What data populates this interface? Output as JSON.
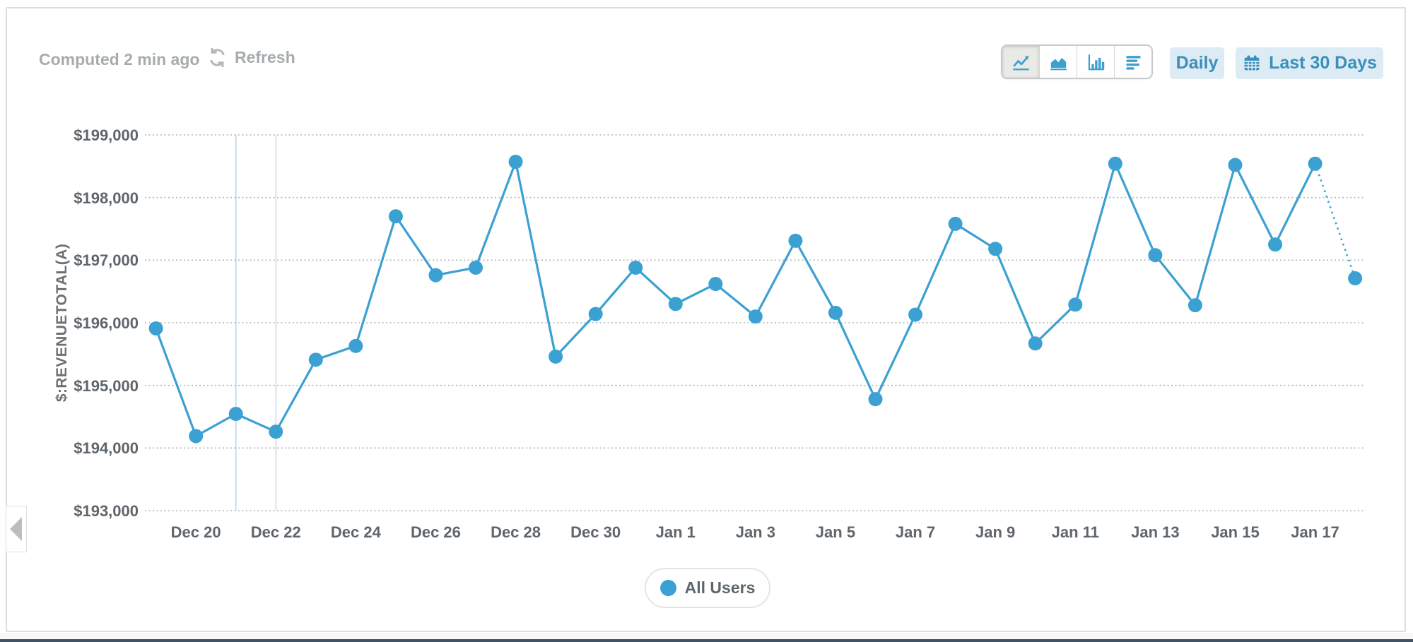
{
  "header": {
    "computed_label": "Computed 2 min ago",
    "refresh_label": "Refresh"
  },
  "toolbar": {
    "granularity_label": "Daily",
    "range_label": "Last 30 Days",
    "chart_type_buttons": [
      {
        "name": "line-chart",
        "selected": true
      },
      {
        "name": "area-chart",
        "selected": false
      },
      {
        "name": "column-chart",
        "selected": false
      },
      {
        "name": "horizontal-bars",
        "selected": false
      }
    ]
  },
  "legend": {
    "label": "All Users"
  },
  "icons": {
    "refresh": "refresh-icon",
    "calendar": "calendar-icon",
    "line_chart": "line-chart-icon",
    "area_chart": "area-chart-icon",
    "column_chart": "column-chart-icon",
    "horizontal_bars": "horizontal-bars-icon",
    "collapse": "collapse-left-arrow-icon",
    "legend_dot": "legend-dot"
  },
  "colors": {
    "accent": "#3BA0D2",
    "button_bg": "#DCEBF4",
    "button_text": "#3A8FBB",
    "grid": "#B0B3B5",
    "axis_text": "#5E656B",
    "muted_text": "#A6ABAE",
    "highlight_line": "#C7DCF0",
    "card_border": "#DCDDDD",
    "bottom_bar": "#3E5263",
    "footer_strip": "#F6F8F9"
  },
  "chart_data": {
    "type": "line",
    "title": "",
    "xlabel": "",
    "ylabel": "$:REVENUETOTAL(A)",
    "ylim": [
      193000,
      199000
    ],
    "y_tick_step": 1000,
    "y_ticks": [
      "$199,000",
      "$198,000",
      "$197,000",
      "$196,000",
      "$195,000",
      "$194,000",
      "$193,000"
    ],
    "grid": "horizontal-dotted",
    "legend_position": "bottom",
    "line_color": "#3BA0D2",
    "x": [
      "Dec 19",
      "Dec 20",
      "Dec 21",
      "Dec 22",
      "Dec 23",
      "Dec 24",
      "Dec 25",
      "Dec 26",
      "Dec 27",
      "Dec 28",
      "Dec 29",
      "Dec 30",
      "Dec 31",
      "Jan 1",
      "Jan 2",
      "Jan 3",
      "Jan 4",
      "Jan 5",
      "Jan 6",
      "Jan 7",
      "Jan 8",
      "Jan 9",
      "Jan 10",
      "Jan 11",
      "Jan 12",
      "Jan 13",
      "Jan 14",
      "Jan 15",
      "Jan 16",
      "Jan 17",
      "Jan 18"
    ],
    "x_tick_labels": [
      "Dec 20",
      "Dec 22",
      "Dec 24",
      "Dec 26",
      "Dec 28",
      "Dec 30",
      "Jan 1",
      "Jan 3",
      "Jan 5",
      "Jan 7",
      "Jan 9",
      "Jan 11",
      "Jan 13",
      "Jan 15",
      "Jan 17"
    ],
    "series": [
      {
        "name": "All Users",
        "values": [
          195910,
          194190,
          194545,
          194260,
          195410,
          195630,
          197700,
          196760,
          196880,
          198570,
          195460,
          196140,
          196880,
          196300,
          196620,
          196100,
          197310,
          196160,
          194780,
          196130,
          197580,
          197180,
          195670,
          196290,
          198540,
          197080,
          196280,
          198520,
          197250,
          198540,
          196710
        ]
      }
    ],
    "incomplete_last_point": true,
    "vertical_highlight_dates": [
      "Dec 21",
      "Dec 22"
    ]
  }
}
